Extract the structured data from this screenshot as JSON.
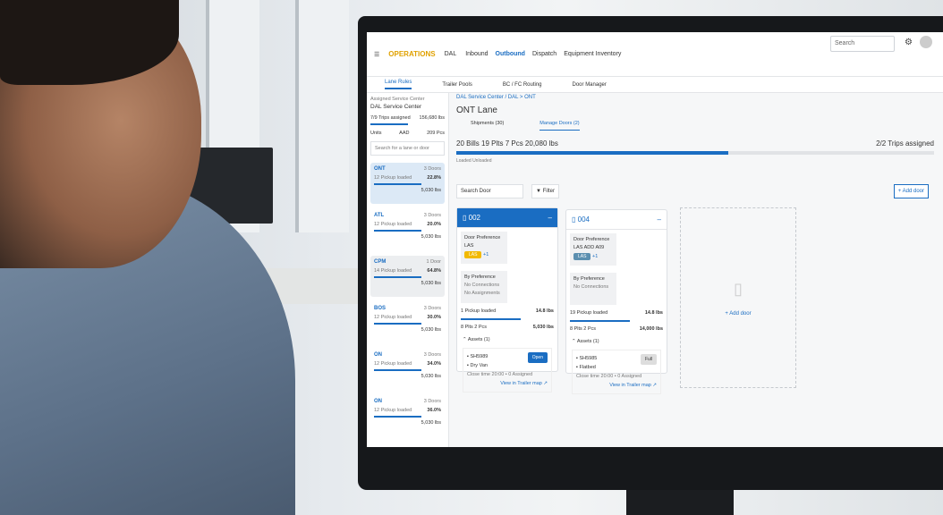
{
  "app": {
    "name": "OPERATIONS",
    "location": "DAL"
  },
  "nav": [
    "Inbound",
    "Outbound",
    "Dispatch",
    "Equipment Inventory"
  ],
  "nav_active": 1,
  "search_placeholder": "Search",
  "tabs": [
    "Lane Rules",
    "Trailer Pools",
    "BC / FC Routing",
    "Door Manager"
  ],
  "sidebar": {
    "subtitle": "Assigned Service Center",
    "title": "DAL Service Center",
    "stat1": "7/9 Trips assigned",
    "stat1_value": "156,680 lbs",
    "stats": [
      "Units",
      "AAD",
      "209 Pcs"
    ],
    "search_placeholder": "Search for a lane or door",
    "lanes": [
      {
        "code": "ONT",
        "doors": "3 Doors",
        "sub": "12 Pickup loaded",
        "pct": "22.8%",
        "weight": "5,030 lbs"
      },
      {
        "code": "ATL",
        "doors": "3 Doors",
        "sub": "12 Pickup loaded",
        "pct": "20.0%",
        "weight": "5,030 lbs"
      },
      {
        "code": "CPM",
        "doors": "1 Door",
        "sub": "14 Pickup loaded",
        "pct": "64.8%",
        "weight": "5,030 lbs"
      },
      {
        "code": "BOS",
        "doors": "3 Doors",
        "sub": "12 Pickup loaded",
        "pct": "30.0%",
        "weight": "5,030 lbs"
      },
      {
        "code": "ON",
        "doors": "3 Doors",
        "sub": "12 Pickup loaded",
        "pct": "34.0%",
        "weight": "5,030 lbs"
      },
      {
        "code": "ON",
        "doors": "3 Doors",
        "sub": "12 Pickup loaded",
        "pct": "36.0%",
        "weight": "5,030 lbs"
      }
    ]
  },
  "main": {
    "breadcrumb": "DAL Service Center / DAL > ONT",
    "title": "ONT Lane",
    "subtabs": [
      "Shipments (30)",
      "Manage Doors (2)"
    ],
    "summary": "20 Bills  19 Plts  7 Pcs  20,080 lbs",
    "trips": "2/2 Trips assigned",
    "progress": 57,
    "legend": "Loaded  Unloaded",
    "door_search": "Search Door",
    "filter": "Filter",
    "add_door": "Add door",
    "cards": [
      {
        "door": "002",
        "left_title": "Door Preference",
        "left_val": "LAS",
        "right_title": "By Preference",
        "right_l1": "No Connections",
        "right_l2": "No Assignments",
        "tag": "LAS",
        "tag_color": "#f2b900",
        "extra": "+1",
        "loaded": "1 Pickup loaded",
        "weight": "14.8 lbs",
        "pcs": "8 Plts  2 Pcs",
        "lbs": "5,030 lbs",
        "assets": "Assets (1)",
        "asset": "SH5989",
        "asset_type": "Dry Van",
        "status": "Open",
        "detail": "Close time 20:00 • 0 Assigned",
        "link": "View in Trailer map"
      },
      {
        "door": "004",
        "left_title": "Door Preference",
        "left_val": "LAS  ADD  A09",
        "right_title": "By Preference",
        "right_l1": "No Connections",
        "right_l2": "",
        "tag": "LAS",
        "tag_color": "#5b8fb0",
        "extra": "+1",
        "tag2": "ADD",
        "loaded": "19 Pickup loaded",
        "weight": "14.8 lbs",
        "pcs": "8 Plts  2 Pcs",
        "lbs": "14,000 lbs",
        "assets": "Assets (1)",
        "asset": "SH5985",
        "asset_type": "Flatbed",
        "status": "Full",
        "detail": "Close time 20:00 • 0 Assigned",
        "link": "View in Trailer map"
      }
    ]
  }
}
